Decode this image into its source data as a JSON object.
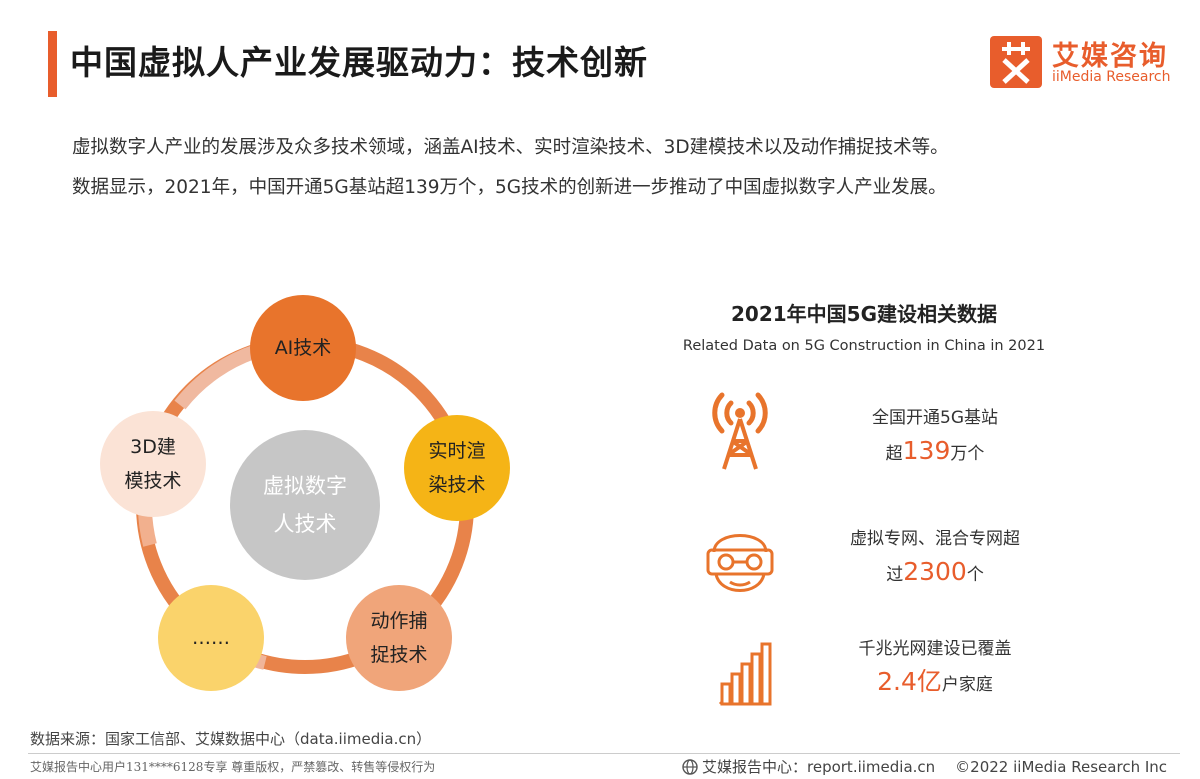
{
  "header": {
    "title": "中国虚拟人产业发展驱动力：技术创新",
    "logo_cn": "艾媒咨询",
    "logo_en": "iiMedia Research",
    "accent_color": "#e85d2c"
  },
  "intro": {
    "line1": "虚拟数字人产业的发展涉及众多技术领域，涵盖AI技术、实时渲染技术、3D建模技术以及动作捕捉技术等。",
    "line2": "数据显示，2021年，中国开通5G基站超139万个，5G技术的创新进一步推动了中国虚拟数字人产业发展。"
  },
  "diagram": {
    "center": {
      "line1": "虚拟数字",
      "line2": "人技术",
      "color": "#c6c6c6"
    },
    "nodes": [
      {
        "line1": "AI技术",
        "line2": "",
        "color": "#e8742c"
      },
      {
        "line1": "实时渲",
        "line2": "染技术",
        "color": "#f5b416"
      },
      {
        "line1": "动作捕",
        "line2": "捉技术",
        "color": "#f0a57a"
      },
      {
        "line1": "……",
        "line2": "",
        "color": "#fad36b"
      },
      {
        "line1": "3D建",
        "line2": "模技术",
        "color": "#fbe3d6"
      }
    ]
  },
  "panel": {
    "title": "2021年中国5G建设相关数据",
    "subtitle": "Related Data on 5G Construction in China in 2021",
    "stats": [
      {
        "icon": "signal-tower-icon",
        "line1": "全国开通5G基站",
        "prefix": "超",
        "value": "139",
        "suffix": "万个"
      },
      {
        "icon": "vr-headset-icon",
        "line1": "虚拟专网、混合专网超",
        "prefix": "过",
        "value": "2300",
        "suffix": "个"
      },
      {
        "icon": "bar-growth-icon",
        "line1": "千兆光网建设已覆盖",
        "prefix": "",
        "value": "2.4亿",
        "suffix": "户家庭"
      }
    ]
  },
  "source": "数据来源：国家工信部、艾媒数据中心（data.iimedia.cn）",
  "footer": {
    "left": "艾媒报告中心用户131****6128专享 尊重版权，严禁篡改、转售等侵权行为",
    "right_label": "艾媒报告中心：report.iimedia.cn",
    "copyright": "©2022  iiMedia Research  Inc"
  }
}
